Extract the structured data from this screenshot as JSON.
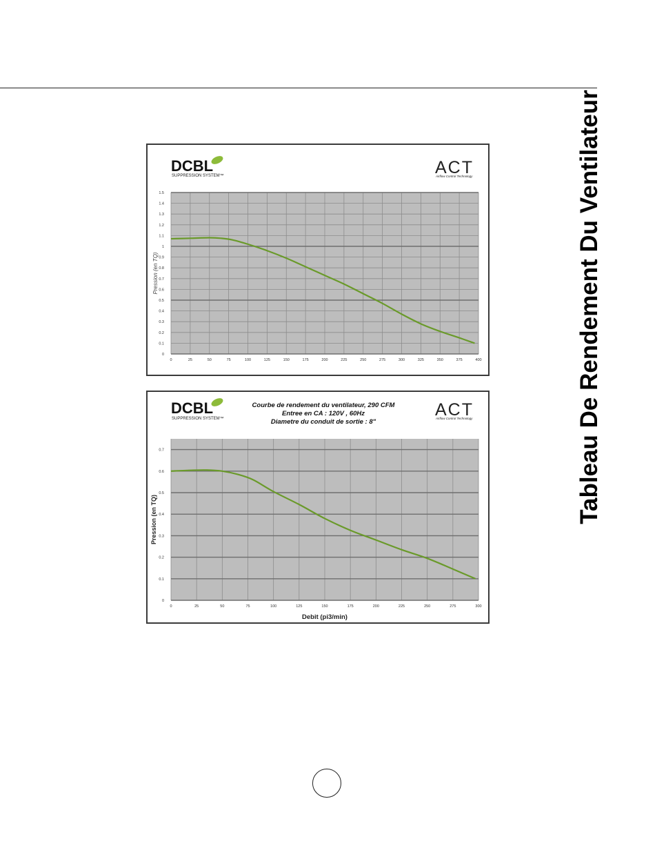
{
  "page": {
    "side_title": "Tableau De Rendement Du Ventilateur"
  },
  "colors": {
    "curve": "#6a9a2a",
    "plot_bg": "#bdbdbd",
    "grid": "#8c8c8c",
    "leaf": "#8dbb3a"
  },
  "icons": [
    "dcbl-leaf-logo",
    "act-logo"
  ],
  "logos": {
    "dcbl_brand": "DCBL",
    "dcbl_sub": "SUPPRESSION SYSTEM™",
    "act_brand": "ACT",
    "act_sub": "Airflow Control Technology"
  },
  "chart_data": [
    {
      "type": "line",
      "title": "",
      "xlabel": "",
      "ylabel": "Pression (en TQ)",
      "xlim": [
        0,
        400
      ],
      "ylim": [
        0,
        1.5
      ],
      "x_ticks": [
        "0",
        "25",
        "50",
        "75",
        "100",
        "125",
        "150",
        "175",
        "200",
        "225",
        "250",
        "275",
        "300",
        "325",
        "350",
        "375",
        "400"
      ],
      "y_ticks": [
        "0",
        "0.1",
        "0.2",
        "0.3",
        "0.4",
        "0.5",
        "0.6",
        "0.7",
        "0.8",
        "0.9",
        "1",
        "1.1",
        "1.2",
        "1.3",
        "1.4",
        "1.5"
      ],
      "grid": true,
      "series": [
        {
          "x": [
            0,
            25,
            50,
            65,
            80,
            100,
            125,
            150,
            175,
            200,
            225,
            250,
            275,
            300,
            325,
            350,
            375,
            395
          ],
          "y": [
            1.07,
            1.075,
            1.08,
            1.075,
            1.06,
            1.02,
            0.96,
            0.89,
            0.81,
            0.73,
            0.65,
            0.56,
            0.47,
            0.37,
            0.28,
            0.21,
            0.15,
            0.1
          ]
        }
      ]
    },
    {
      "type": "line",
      "title_lines": [
        "Courbe de rendement du ventilateur, 290 CFM",
        "Entree en CA : 120V , 60Hz",
        "Diametre du conduit de sortie : 8\""
      ],
      "xlabel": "Debit (pi3/min)",
      "ylabel": "Pression (en TQ)",
      "xlim": [
        0,
        300
      ],
      "ylim": [
        0,
        0.75
      ],
      "x_ticks": [
        "0",
        "25",
        "50",
        "75",
        "100",
        "125",
        "150",
        "175",
        "200",
        "225",
        "250",
        "275",
        "300"
      ],
      "y_ticks": [
        "0",
        "0.1",
        "0.2",
        "0.3",
        "0.4",
        "0.5",
        "0.6",
        "0.7"
      ],
      "grid": true,
      "series": [
        {
          "x": [
            0,
            20,
            35,
            50,
            65,
            80,
            100,
            125,
            150,
            175,
            200,
            225,
            250,
            275,
            297
          ],
          "y": [
            0.6,
            0.604,
            0.605,
            0.6,
            0.585,
            0.56,
            0.505,
            0.445,
            0.38,
            0.325,
            0.28,
            0.235,
            0.195,
            0.145,
            0.1
          ]
        }
      ]
    }
  ]
}
